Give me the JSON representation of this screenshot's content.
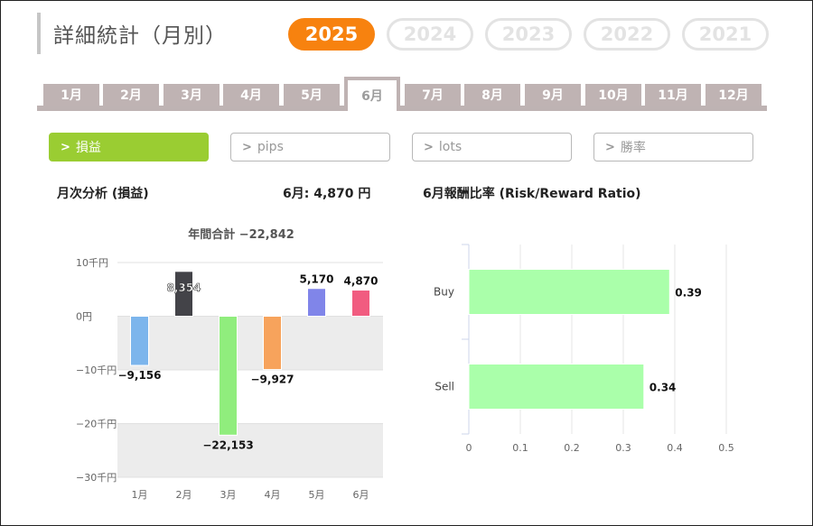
{
  "page": {
    "title": "詳細統計（月別）"
  },
  "years": [
    {
      "label": "2025",
      "active": true
    },
    {
      "label": "2024",
      "active": false
    },
    {
      "label": "2023",
      "active": false
    },
    {
      "label": "2022",
      "active": false
    },
    {
      "label": "2021",
      "active": false
    }
  ],
  "months": [
    "1月",
    "2月",
    "3月",
    "4月",
    "5月",
    "6月",
    "7月",
    "8月",
    "9月",
    "10月",
    "11月",
    "12月"
  ],
  "active_month_index": 5,
  "filters": [
    {
      "label": "損益",
      "active": true
    },
    {
      "label": "pips",
      "active": false
    },
    {
      "label": "lots",
      "active": false
    },
    {
      "label": "勝率",
      "active": false
    }
  ],
  "left_panel": {
    "title": "月次分析 (損益)",
    "month_value": "6月:  4,870 円",
    "annual_total": "年間合計 −22,842"
  },
  "right_panel": {
    "title": "6月報酬比率 (Risk/Reward Ratio)"
  },
  "chart_data": [
    {
      "type": "bar",
      "title": "年間合計 −22,842",
      "categories": [
        "1月",
        "2月",
        "3月",
        "4月",
        "5月",
        "6月"
      ],
      "values": [
        -9156,
        8354,
        -22153,
        -9927,
        5170,
        4870
      ],
      "value_labels": [
        "−9,156",
        "8,354",
        "−22,153",
        "−9,927",
        "5,170",
        "4,870"
      ],
      "colors": [
        "#7cb5ec",
        "#434348",
        "#90ed7d",
        "#f7a35c",
        "#8085e9",
        "#f15c80"
      ],
      "yticks": [
        10000,
        0,
        -10000,
        -20000,
        -30000
      ],
      "ytick_labels": [
        "10千円",
        "0円",
        "−10千円",
        "−20千円",
        "−30千円"
      ],
      "ylim": [
        -30000,
        10000
      ],
      "grid": "alternating bands"
    },
    {
      "type": "bar",
      "orientation": "horizontal",
      "categories": [
        "Buy",
        "Sell"
      ],
      "values": [
        0.39,
        0.34
      ],
      "value_labels": [
        "0.39",
        "0.34"
      ],
      "color": "#aaffaa",
      "xticks": [
        0,
        0.1,
        0.2,
        0.3,
        0.4,
        0.5
      ],
      "xtick_labels": [
        "0",
        "0.1",
        "0.2",
        "0.3",
        "0.4",
        "0.5"
      ],
      "xlim": [
        0,
        0.5
      ]
    }
  ]
}
